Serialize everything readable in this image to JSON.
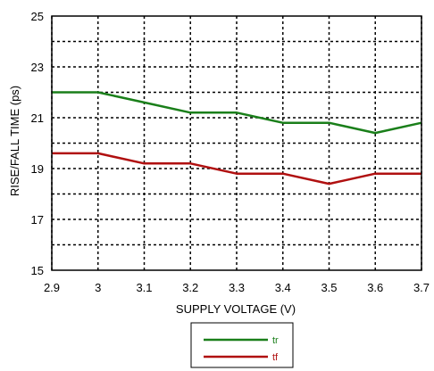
{
  "chart_data": {
    "type": "line",
    "title": "",
    "xlabel": "SUPPLY VOLTAGE (V)",
    "ylabel": "RISE/FALL TIME (ps)",
    "xlim": [
      2.9,
      3.7
    ],
    "ylim": [
      15,
      25
    ],
    "xticks": [
      "2.9",
      "3",
      "3.1",
      "3.2",
      "3.3",
      "3.4",
      "3.5",
      "3.6",
      "3.7"
    ],
    "yticks": [
      "15",
      "17",
      "19",
      "21",
      "23",
      "25"
    ],
    "grid": true,
    "legend_position": "bottom-center",
    "series": [
      {
        "name": "tr",
        "color": "#1a7f1a",
        "x": [
          2.9,
          3.0,
          3.1,
          3.2,
          3.3,
          3.4,
          3.5,
          3.6,
          3.7
        ],
        "y": [
          22.0,
          22.0,
          21.6,
          21.2,
          21.2,
          20.8,
          20.8,
          20.4,
          20.8
        ]
      },
      {
        "name": "tf",
        "color": "#b01010",
        "x": [
          2.9,
          3.0,
          3.1,
          3.2,
          3.3,
          3.4,
          3.5,
          3.6,
          3.7
        ],
        "y": [
          19.6,
          19.6,
          19.2,
          19.2,
          18.8,
          18.8,
          18.4,
          18.8,
          18.8
        ]
      }
    ]
  }
}
